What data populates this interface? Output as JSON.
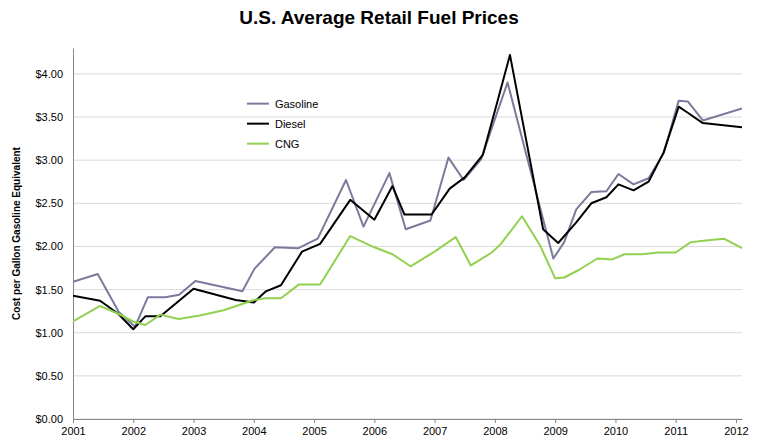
{
  "chart_data": {
    "type": "line",
    "title": "U.S. Average Retail Fuel Prices",
    "y_label": "Cost per Gallon Gasoline Equivalent",
    "xlim": [
      2001,
      2012.1
    ],
    "xticks": [
      2001,
      2002,
      2003,
      2004,
      2005,
      2006,
      2007,
      2008,
      2009,
      2010,
      2011,
      2012
    ],
    "ylim": [
      0,
      4.3
    ],
    "yticks": [
      {
        "value": 0,
        "label": "$0.00"
      },
      {
        "value": 0.5,
        "label": "$0.50"
      },
      {
        "value": 1,
        "label": "$1.00"
      },
      {
        "value": 1.5,
        "label": "$1.50"
      },
      {
        "value": 2,
        "label": "$2.00"
      },
      {
        "value": 2.5,
        "label": "$2.50"
      },
      {
        "value": 3,
        "label": "$3.00"
      },
      {
        "value": 3.5,
        "label": "$3.50"
      },
      {
        "value": 4,
        "label": "$4.00"
      }
    ],
    "grid": true,
    "legend": "upper left",
    "series": [
      {
        "name": "Gasoline",
        "color": "#7a7a9c",
        "x": [
          2001.0,
          2001.41,
          2001.76,
          2002.03,
          2002.24,
          2002.53,
          2002.76,
          2003.03,
          2003.81,
          2004.01,
          2004.35,
          2004.74,
          2005.06,
          2005.53,
          2005.82,
          2006.25,
          2006.52,
          2006.93,
          2007.23,
          2007.48,
          2007.77,
          2008.21,
          2008.97,
          2009.15,
          2009.35,
          2009.6,
          2009.85,
          2010.05,
          2010.3,
          2010.55,
          2010.8,
          2011.05,
          2011.2,
          2011.45,
          2012.1
        ],
        "values": [
          1.59,
          1.68,
          1.24,
          1.07,
          1.41,
          1.41,
          1.44,
          1.6,
          1.48,
          1.74,
          1.99,
          1.98,
          2.09,
          2.77,
          2.23,
          2.85,
          2.2,
          2.3,
          3.03,
          2.77,
          3.01,
          3.9,
          1.86,
          2.05,
          2.43,
          2.63,
          2.64,
          2.84,
          2.72,
          2.79,
          3.08,
          3.69,
          3.68,
          3.46,
          3.6
        ]
      },
      {
        "name": "Diesel",
        "color": "#000000",
        "x": [
          2001.0,
          2001.45,
          2001.75,
          2002.0,
          2002.2,
          2002.45,
          2003.0,
          2003.7,
          2004.0,
          2004.2,
          2004.45,
          2004.8,
          2005.1,
          2005.6,
          2006.0,
          2006.3,
          2006.5,
          2006.95,
          2007.25,
          2007.5,
          2007.8,
          2008.05,
          2008.25,
          2008.8,
          2009.05,
          2009.35,
          2009.6,
          2009.85,
          2010.05,
          2010.3,
          2010.55,
          2010.8,
          2011.05,
          2011.2,
          2011.45,
          2012.1
        ],
        "values": [
          1.43,
          1.37,
          1.22,
          1.04,
          1.19,
          1.19,
          1.51,
          1.38,
          1.35,
          1.48,
          1.55,
          1.94,
          2.03,
          2.54,
          2.31,
          2.7,
          2.37,
          2.37,
          2.67,
          2.8,
          3.06,
          3.7,
          4.22,
          2.2,
          2.04,
          2.28,
          2.5,
          2.57,
          2.72,
          2.65,
          2.75,
          3.09,
          3.62,
          3.55,
          3.43,
          3.38
        ]
      },
      {
        "name": "CNG",
        "color": "#92d050",
        "x": [
          2001.0,
          2001.45,
          2001.75,
          2002.0,
          2002.2,
          2002.45,
          2002.75,
          2003.1,
          2003.5,
          2004.0,
          2004.2,
          2004.45,
          2004.75,
          2005.1,
          2005.6,
          2006.0,
          2006.3,
          2006.6,
          2007.0,
          2007.35,
          2007.6,
          2007.95,
          2008.1,
          2008.45,
          2008.75,
          2009.0,
          2009.15,
          2009.4,
          2009.7,
          2009.95,
          2010.15,
          2010.45,
          2010.7,
          2011.0,
          2011.25,
          2011.5,
          2011.8,
          2012.1
        ],
        "values": [
          1.13,
          1.31,
          1.22,
          1.13,
          1.09,
          1.21,
          1.16,
          1.2,
          1.26,
          1.38,
          1.4,
          1.4,
          1.56,
          1.56,
          2.12,
          1.99,
          1.91,
          1.77,
          1.94,
          2.11,
          1.78,
          1.93,
          2.03,
          2.35,
          2.01,
          1.63,
          1.64,
          1.73,
          1.86,
          1.85,
          1.91,
          1.91,
          1.93,
          1.93,
          2.05,
          2.07,
          2.09,
          1.98
        ]
      }
    ]
  }
}
